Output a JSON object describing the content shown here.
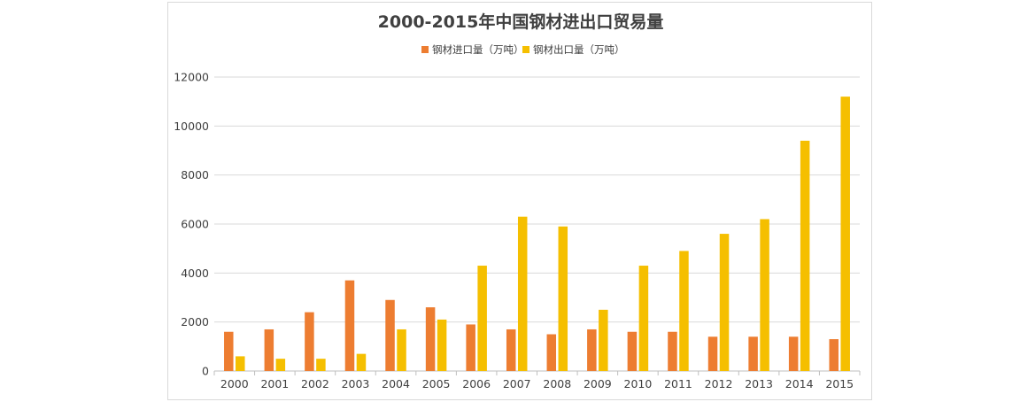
{
  "chart_data": {
    "type": "bar",
    "title": "2000-2015年中国钢材进出口贸易量",
    "xlabel": "",
    "ylabel": "",
    "categories": [
      "2000",
      "2001",
      "2002",
      "2003",
      "2004",
      "2005",
      "2006",
      "2007",
      "2008",
      "2009",
      "2010",
      "2011",
      "2012",
      "2013",
      "2014",
      "2015"
    ],
    "series": [
      {
        "name": "钢材进口量（万吨）",
        "color": "#ed7d31",
        "values": [
          1600,
          1700,
          2400,
          3700,
          2900,
          2600,
          1900,
          1700,
          1500,
          1700,
          1600,
          1600,
          1400,
          1400,
          1400,
          1300
        ]
      },
      {
        "name": "钢材出口量（万吨）",
        "color": "#f5bf00",
        "values": [
          600,
          500,
          500,
          700,
          1700,
          2100,
          4300,
          6300,
          5900,
          2500,
          4300,
          4900,
          5600,
          6200,
          9400,
          11200
        ]
      }
    ],
    "ylim": [
      0,
      12000
    ],
    "yticks": [
      "0",
      "2000",
      "4000",
      "6000",
      "8000",
      "10000",
      "12000"
    ],
    "grid": true,
    "legend_position": "top"
  }
}
